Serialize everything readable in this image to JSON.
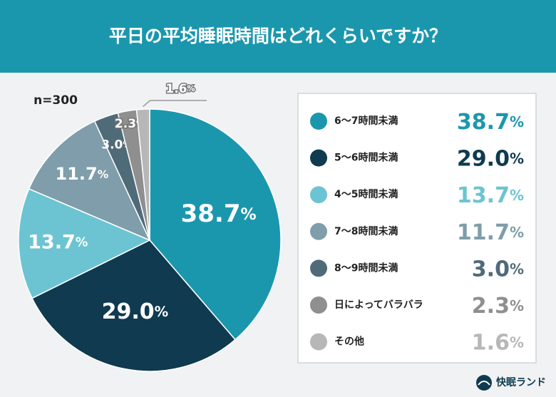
{
  "chart_data": {
    "type": "pie",
    "title": "平日の平均睡眠時間はどれくらいですか？",
    "annotation": "n=300",
    "categories": [
      "6〜7時間未満",
      "5〜6時間未満",
      "4〜5時間未満",
      "7〜8時間未満",
      "8〜9時間未満",
      "日によってバラバラ",
      "その他"
    ],
    "values": [
      38.7,
      29.0,
      13.7,
      11.7,
      3.0,
      2.3,
      1.6
    ],
    "value_labels": [
      "38.7%",
      "29.0%",
      "13.7%",
      "11.7%",
      "3.0%",
      "2.3%",
      "1.6%"
    ],
    "colors": [
      "#1b97ad",
      "#0f3a4f",
      "#6cc4d2",
      "#7f9daa",
      "#506b78",
      "#8f8f8f",
      "#b7b7b7"
    ]
  },
  "brand": "快眠ランド"
}
